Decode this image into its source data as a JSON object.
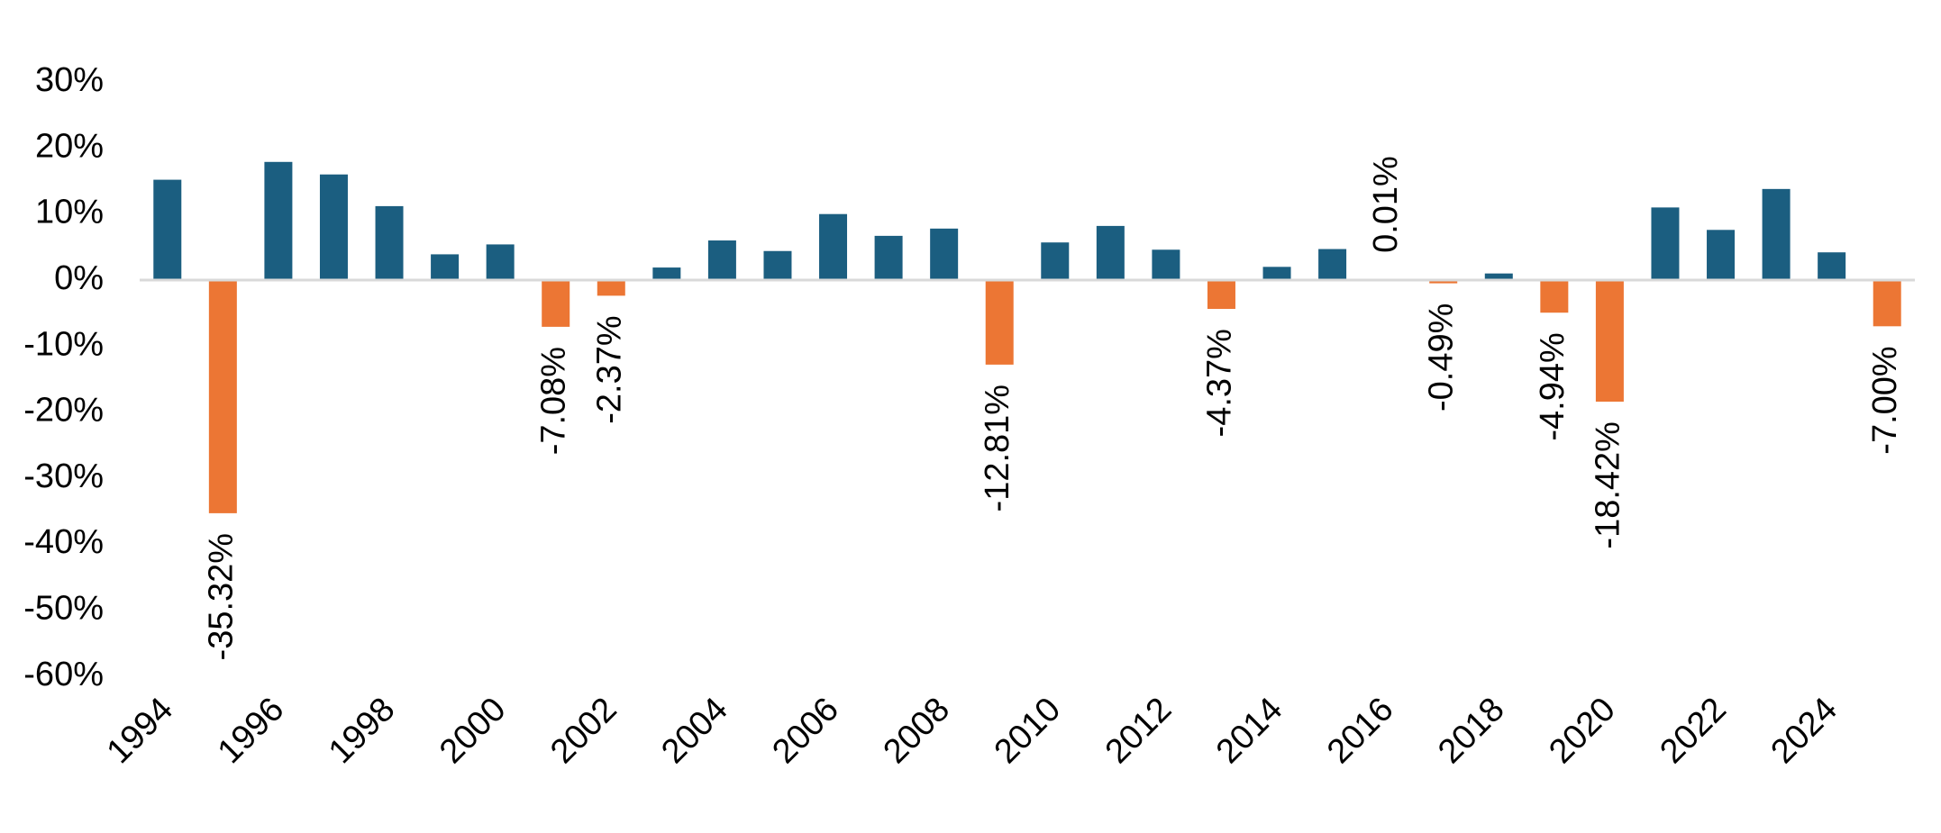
{
  "chart_data": {
    "type": "bar",
    "categories": [
      "1994",
      "1995",
      "1996",
      "1997",
      "1998",
      "1999",
      "2000",
      "2001",
      "2002",
      "2003",
      "2004",
      "2005",
      "2006",
      "2007",
      "2008",
      "2009",
      "2010",
      "2011",
      "2012",
      "2013",
      "2014",
      "2015",
      "2016",
      "2017",
      "2018",
      "2019",
      "2020",
      "2021",
      "2022",
      "2023",
      "2024",
      "2025"
    ],
    "values": [
      15.2,
      -35.32,
      17.9,
      16.0,
      11.2,
      3.9,
      5.4,
      -7.08,
      -2.37,
      1.9,
      6.0,
      4.4,
      10.0,
      6.7,
      7.8,
      -12.81,
      5.7,
      8.2,
      4.6,
      -4.37,
      2.0,
      4.7,
      0.01,
      -0.49,
      1.0,
      -4.94,
      -18.42,
      11.0,
      7.6,
      13.8,
      4.2,
      -7.0
    ],
    "labels": [
      "",
      "-35.32%",
      "",
      "",
      "",
      "",
      "",
      "-7.08%",
      "-2.37%",
      "",
      "",
      "",
      "",
      "",
      "",
      "-12.81%",
      "",
      "",
      "",
      "-4.37%",
      "",
      "",
      "0.01%",
      "-0.49%",
      "",
      "-4.94%",
      "-18.42%",
      "",
      "",
      "",
      "",
      "-7.00%"
    ],
    "x_tick_labels": [
      "1994",
      "1996",
      "1998",
      "2000",
      "2002",
      "2004",
      "2006",
      "2008",
      "2010",
      "2012",
      "2014",
      "2016",
      "2018",
      "2020",
      "2022",
      "2024"
    ],
    "y_tick_labels": [
      "30%",
      "20%",
      "10%",
      "0%",
      "-10%",
      "-20%",
      "-30%",
      "-40%",
      "-50%",
      "-60%"
    ],
    "ylim": [
      -60,
      30
    ],
    "title": "",
    "xlabel": "",
    "ylabel": "",
    "grid": false,
    "colors": {
      "positive": "#1b5e80",
      "negative": "#ec7634",
      "zero_line": "#d9d9d9"
    }
  }
}
